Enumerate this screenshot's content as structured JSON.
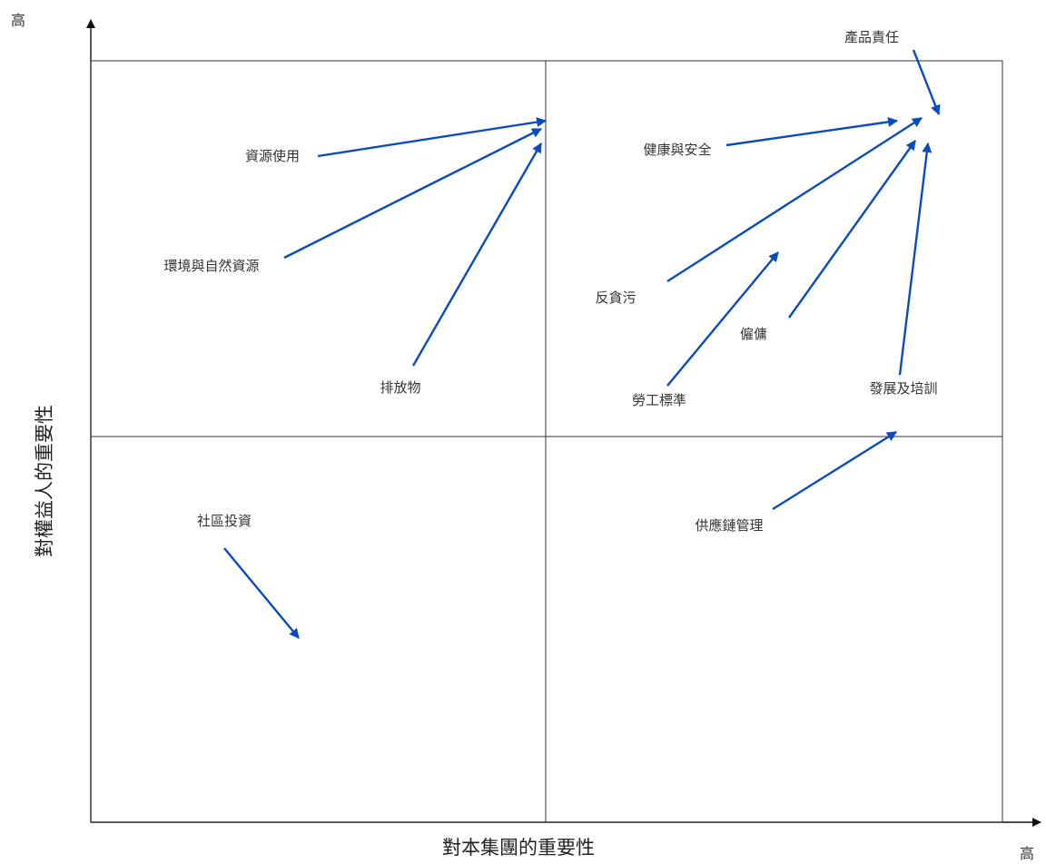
{
  "axes": {
    "x_title": "對本集團的重要性",
    "y_title": "對權益人的重要性",
    "x_high": "高",
    "y_high": "高"
  },
  "topics": {
    "product_responsibility": "產品責任",
    "resource_use": "資源使用",
    "health_safety": "健康與安全",
    "environment": "環境與自然資源",
    "anti_corruption": "反貪污",
    "employment": "僱傭",
    "emissions": "排放物",
    "labour_standards": "勞工標準",
    "development_training": "發展及培訓",
    "community_investment": "社區投資",
    "supply_chain": "供應鏈管理"
  },
  "colors": {
    "arrow": "#0a4bbd",
    "grid": "#333333"
  }
}
